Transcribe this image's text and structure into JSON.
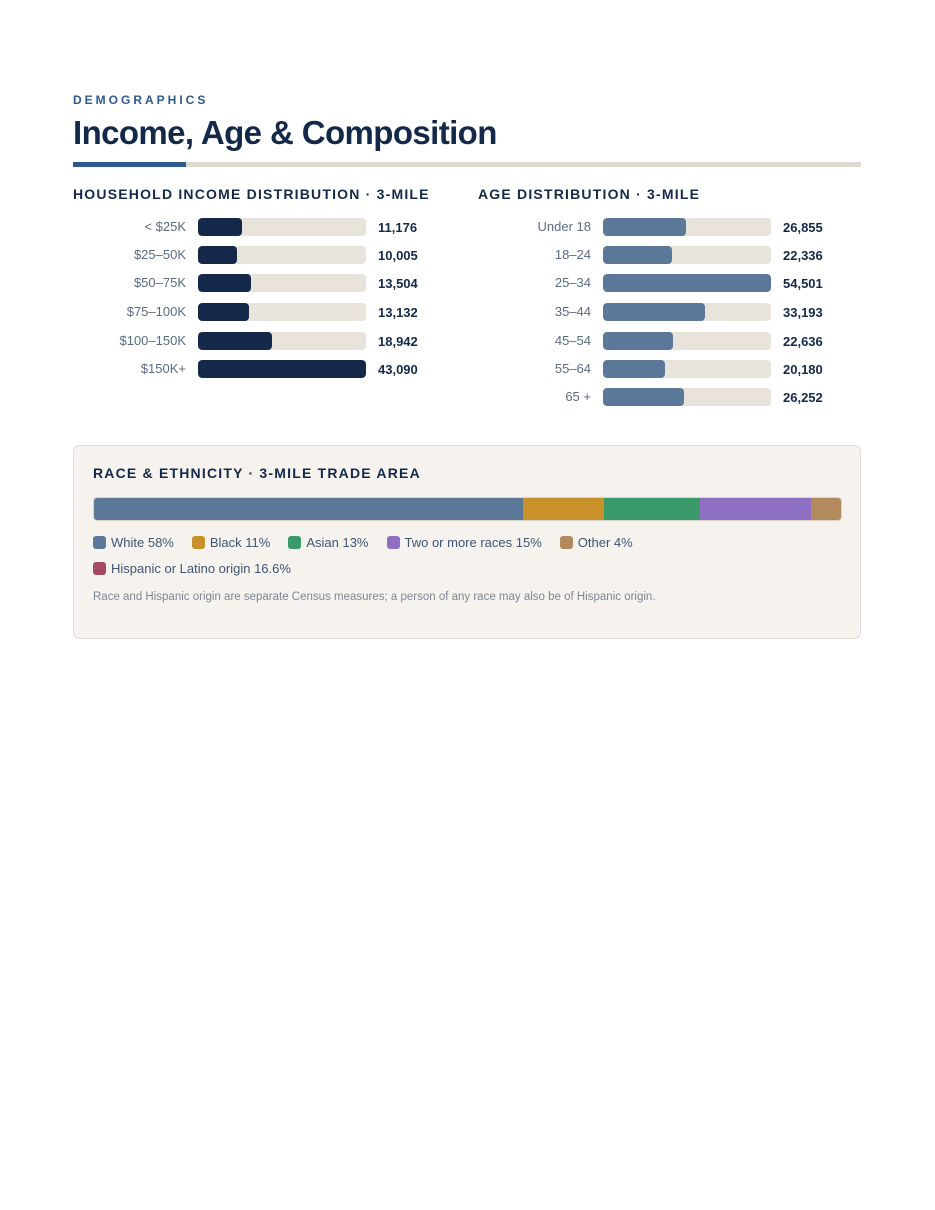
{
  "header": {
    "kicker": "DEMOGRAPHICS",
    "title": "Income, Age & Composition"
  },
  "colors": {
    "navy": "#14294a",
    "accent": "#2d5a8e",
    "age_bar": "#5b7899",
    "track": "#e8e4dc"
  },
  "chart_data": [
    {
      "type": "bar",
      "orientation": "horizontal",
      "title": "HOUSEHOLD INCOME DISTRIBUTION · 3-MILE",
      "categories": [
        "< $25K",
        "$25–50K",
        "$50–75K",
        "$75–100K",
        "$100–150K",
        "$150K+"
      ],
      "values": [
        11176,
        10005,
        13504,
        13132,
        18942,
        43090
      ],
      "value_labels": [
        "11,176",
        "10,005",
        "13,504",
        "13,132",
        "18,942",
        "43,090"
      ],
      "xlim": [
        0,
        43090
      ]
    },
    {
      "type": "bar",
      "orientation": "horizontal",
      "title": "AGE DISTRIBUTION · 3-MILE",
      "categories": [
        "Under 18",
        "18–24",
        "25–34",
        "35–44",
        "45–54",
        "55–64",
        "65 +"
      ],
      "values": [
        26855,
        22336,
        54501,
        33193,
        22636,
        20180,
        26252
      ],
      "value_labels": [
        "26,855",
        "22,336",
        "54,501",
        "33,193",
        "22,636",
        "20,180",
        "26,252"
      ],
      "xlim": [
        0,
        54501
      ]
    },
    {
      "type": "bar",
      "orientation": "stacked-horizontal",
      "title": "RACE & ETHNICITY · 3-MILE TRADE AREA",
      "series": [
        {
          "name": "White",
          "value": 58,
          "label": "White 58%",
          "color": "#5b7899"
        },
        {
          "name": "Black",
          "value": 11,
          "label": "Black 11%",
          "color": "#c8912a"
        },
        {
          "name": "Asian",
          "value": 13,
          "label": "Asian 13%",
          "color": "#3a9a6c"
        },
        {
          "name": "Two or more races",
          "value": 15,
          "label": "Two or more races 15%",
          "color": "#8e6fc2"
        },
        {
          "name": "Other",
          "value": 4,
          "label": "Other 4%",
          "color": "#b38a5e"
        }
      ],
      "extra_legend": [
        {
          "name": "Hispanic or Latino origin",
          "value": 16.6,
          "label": "Hispanic or Latino origin 16.6%",
          "color": "#a34a63"
        }
      ],
      "note": "Race and Hispanic origin are separate Census measures; a person of any race may also be of Hispanic origin."
    }
  ]
}
